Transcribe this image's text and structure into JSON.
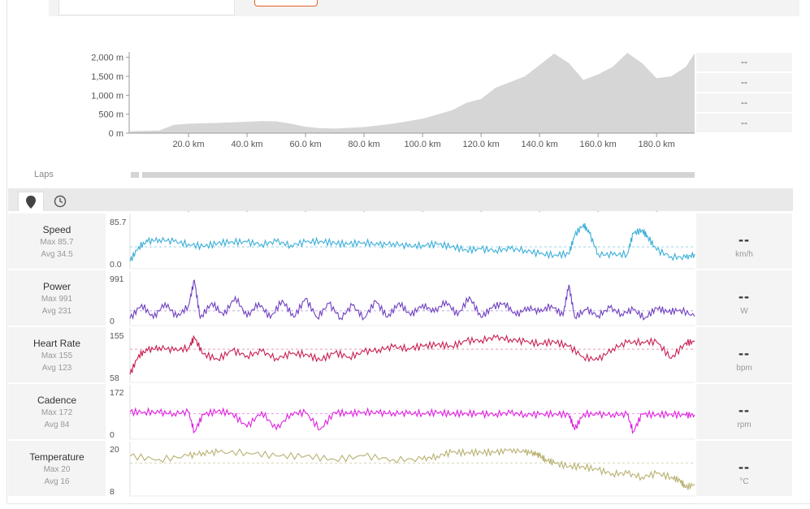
{
  "chart_data": [
    {
      "type": "area",
      "title": "",
      "xlabel": "",
      "ylabel": "",
      "x_ticks": [
        "20.0 km",
        "40.0 km",
        "60.0 km",
        "80.0 km",
        "100.0 km",
        "120.0 km",
        "140.0 km",
        "160.0 km",
        "180.0 km"
      ],
      "y_ticks": [
        "0 m",
        "500 m",
        "1,000 m",
        "1,500 m",
        "2,000 m"
      ],
      "xlim": [
        0,
        193
      ],
      "ylim": [
        0,
        2100
      ],
      "x": [
        0,
        10,
        15,
        20,
        30,
        40,
        45,
        50,
        55,
        60,
        65,
        70,
        80,
        90,
        100,
        110,
        115,
        120,
        125,
        130,
        135,
        140,
        145,
        150,
        155,
        160,
        165,
        170,
        175,
        180,
        185,
        190,
        193
      ],
      "values": [
        50,
        70,
        220,
        250,
        270,
        300,
        320,
        310,
        250,
        170,
        130,
        120,
        160,
        250,
        380,
        600,
        800,
        900,
        1200,
        1350,
        1500,
        1800,
        2100,
        1850,
        1400,
        1550,
        1750,
        2120,
        1850,
        1450,
        1500,
        1750,
        2110
      ],
      "series_color": "#d6d6d6"
    },
    {
      "type": "line",
      "title": "Speed",
      "ylabels": [
        "85.7",
        "0.0"
      ],
      "ylim": [
        0,
        85.7
      ],
      "avg": 34.5,
      "color": "#3aaed8",
      "x": [
        0,
        3,
        6,
        10,
        15,
        20,
        25,
        30,
        35,
        40,
        45,
        50,
        55,
        60,
        65,
        70,
        75,
        80,
        85,
        90,
        95,
        100,
        105,
        110,
        115,
        120,
        125,
        130,
        135,
        140,
        145,
        150,
        152,
        155,
        157,
        160,
        165,
        170,
        172,
        175,
        177,
        180,
        185,
        190,
        193
      ],
      "values": [
        5,
        35,
        45,
        50,
        45,
        40,
        35,
        42,
        45,
        44,
        40,
        45,
        38,
        44,
        46,
        42,
        40,
        44,
        38,
        42,
        35,
        38,
        40,
        35,
        28,
        30,
        28,
        30,
        28,
        20,
        18,
        20,
        58,
        80,
        62,
        20,
        18,
        20,
        62,
        68,
        55,
        28,
        15,
        12,
        20
      ]
    },
    {
      "type": "line",
      "title": "Power",
      "ylabels": [
        "991",
        "0"
      ],
      "ylim": [
        0,
        991
      ],
      "avg": 231,
      "color": "#7040c0",
      "x": [
        0,
        4,
        8,
        12,
        16,
        20,
        22,
        24,
        28,
        32,
        36,
        40,
        44,
        48,
        52,
        56,
        60,
        64,
        68,
        72,
        76,
        80,
        84,
        88,
        92,
        96,
        100,
        104,
        108,
        112,
        116,
        120,
        124,
        128,
        132,
        136,
        140,
        144,
        148,
        150,
        152,
        156,
        160,
        164,
        168,
        172,
        176,
        180,
        184,
        188,
        193
      ],
      "values": [
        50,
        380,
        60,
        420,
        80,
        350,
        950,
        60,
        420,
        120,
        560,
        90,
        420,
        60,
        480,
        80,
        520,
        70,
        400,
        60,
        360,
        60,
        460,
        80,
        420,
        120,
        380,
        200,
        460,
        120,
        560,
        80,
        320,
        420,
        120,
        320,
        200,
        360,
        120,
        840,
        80,
        260,
        120,
        300,
        160,
        260,
        60,
        300,
        200,
        260,
        100
      ]
    },
    {
      "type": "line",
      "title": "Heart Rate",
      "ylabels": [
        "155",
        "58"
      ],
      "ylim": [
        58,
        155
      ],
      "avg": 123,
      "color": "#c81e50",
      "x": [
        0,
        3,
        6,
        10,
        15,
        20,
        22,
        25,
        30,
        35,
        40,
        45,
        50,
        55,
        60,
        65,
        70,
        75,
        80,
        85,
        90,
        95,
        100,
        105,
        110,
        115,
        120,
        125,
        130,
        135,
        140,
        145,
        150,
        155,
        160,
        165,
        170,
        175,
        180,
        185,
        190,
        193
      ],
      "values": [
        65,
        110,
        120,
        128,
        120,
        126,
        150,
        112,
        100,
        120,
        108,
        118,
        102,
        112,
        112,
        98,
        115,
        105,
        117,
        122,
        128,
        125,
        130,
        134,
        130,
        142,
        144,
        150,
        146,
        140,
        136,
        140,
        130,
        105,
        98,
        125,
        138,
        140,
        140,
        102,
        138,
        140
      ]
    },
    {
      "type": "line",
      "title": "Cadence",
      "ylabels": [
        "172",
        "0"
      ],
      "ylim": [
        0,
        172
      ],
      "avg": 84,
      "color": "#e020e0",
      "x": [
        0,
        5,
        10,
        15,
        20,
        22,
        25,
        30,
        35,
        40,
        45,
        50,
        55,
        60,
        65,
        70,
        75,
        80,
        85,
        90,
        95,
        100,
        105,
        110,
        115,
        120,
        125,
        130,
        135,
        140,
        145,
        150,
        152,
        155,
        160,
        165,
        170,
        172,
        175,
        180,
        185,
        190,
        193
      ],
      "values": [
        90,
        92,
        88,
        86,
        90,
        10,
        80,
        95,
        85,
        30,
        92,
        20,
        86,
        88,
        20,
        90,
        84,
        92,
        86,
        88,
        84,
        86,
        88,
        84,
        86,
        82,
        84,
        86,
        82,
        80,
        84,
        80,
        20,
        84,
        80,
        82,
        80,
        10,
        82,
        80,
        82,
        78,
        80
      ]
    },
    {
      "type": "line",
      "title": "Temperature",
      "ylabels": [
        "20",
        "8"
      ],
      "ylim": [
        8,
        20
      ],
      "avg": 16,
      "color": "#b8b070",
      "x": [
        0,
        10,
        20,
        25,
        30,
        40,
        50,
        60,
        70,
        80,
        90,
        100,
        105,
        110,
        115,
        120,
        125,
        130,
        135,
        138,
        140,
        142,
        145,
        150,
        155,
        160,
        165,
        170,
        175,
        180,
        185,
        188,
        190,
        193
      ],
      "values": [
        18,
        17,
        18,
        19,
        19,
        19,
        18,
        18,
        17,
        18,
        17,
        17,
        18,
        19,
        19,
        19,
        19,
        20,
        19,
        19,
        18,
        17,
        16,
        15,
        15,
        14,
        13,
        13,
        12,
        13,
        12,
        11,
        9,
        10
      ]
    }
  ],
  "profile_summary": [
    "--",
    "--",
    "--",
    "--"
  ],
  "laps": {
    "label": "Laps"
  },
  "tabs": {
    "map_icon": "map-pin-icon",
    "time_icon": "clock-icon"
  },
  "rows": [
    {
      "name": "Speed",
      "max": "Max 85.7",
      "avg": "Avg 34.5",
      "value": "--",
      "unit": "km/h"
    },
    {
      "name": "Power",
      "max": "Max 991",
      "avg": "Avg 231",
      "value": "--",
      "unit": "W"
    },
    {
      "name": "Heart Rate",
      "max": "Max 155",
      "avg": "Avg 123",
      "value": "--",
      "unit": "bpm"
    },
    {
      "name": "Cadence",
      "max": "Max 172",
      "avg": "Avg 84",
      "value": "--",
      "unit": "rpm"
    },
    {
      "name": "Temperature",
      "max": "Max 20",
      "avg": "Avg 16",
      "value": "--",
      "unit": "°C"
    }
  ],
  "colors": {
    "accent": "#e4602c",
    "panel": "#f4f4f4"
  }
}
